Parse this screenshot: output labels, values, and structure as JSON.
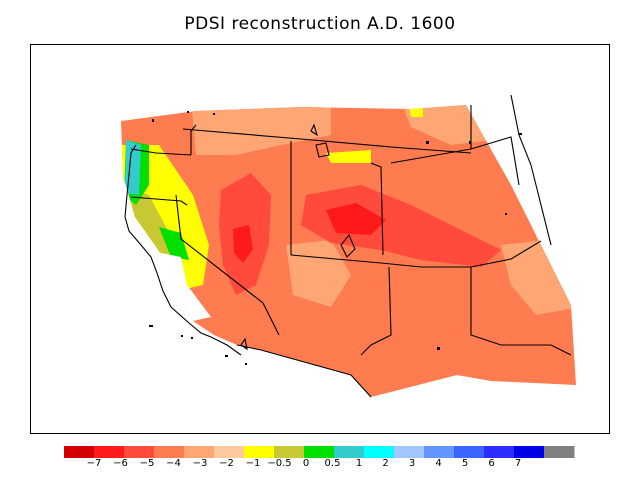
{
  "title": "PDSI reconstruction A.D. 1600",
  "colorbar": {
    "colors": [
      "#d20000",
      "#ff1a1a",
      "#ff4a3c",
      "#ff7b50",
      "#ffa675",
      "#ffc9a0",
      "#ffff00",
      "#c8c832",
      "#00e000",
      "#33cccc",
      "#00ffff",
      "#a0c8ff",
      "#6495ff",
      "#3c64ff",
      "#2d2dff",
      "#0000e6",
      "#808080"
    ],
    "labels": [
      "−7",
      "−6",
      "−5",
      "−4",
      "−3",
      "−2",
      "−1",
      "−0.5",
      "0",
      "0.5",
      "1",
      "2",
      "3",
      "4",
      "5",
      "6",
      "7"
    ]
  },
  "chart_data": {
    "type": "heatmap",
    "title": "PDSI reconstruction A.D. 1600",
    "variable": "PDSI",
    "year": 1600,
    "scale_breaks": [
      -7,
      -6,
      -5,
      -4,
      -3,
      -2,
      -1,
      -0.5,
      0,
      0.5,
      1,
      2,
      3,
      4,
      5,
      6,
      7
    ]
  }
}
